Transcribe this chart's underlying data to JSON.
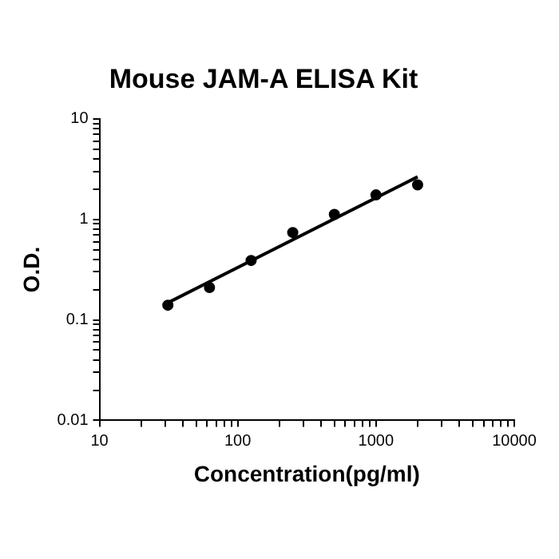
{
  "chart_data": {
    "type": "scatter",
    "title": "Mouse JAM-A ELISA Kit",
    "xlabel": "Concentration(pg/ml)",
    "ylabel": "O.D.",
    "log": "xy",
    "grid": false,
    "legend": false,
    "marker": "circle",
    "xlim": [
      10,
      10000
    ],
    "ylim": [
      0.01,
      10
    ],
    "xticks": [
      10,
      {
        "value": 20,
        "label": null
      },
      {
        "value": 30,
        "label": null
      },
      {
        "value": 40,
        "label": null
      },
      {
        "value": 50,
        "label": null
      },
      {
        "value": 60,
        "label": null
      },
      {
        "value": 70,
        "label": null
      },
      {
        "value": 80,
        "label": null
      },
      {
        "value": 90,
        "label": null
      },
      100,
      {
        "value": 200,
        "label": null
      },
      {
        "value": 300,
        "label": null
      },
      {
        "value": 400,
        "label": null
      },
      {
        "value": 500,
        "label": null
      },
      {
        "value": 600,
        "label": null
      },
      {
        "value": 700,
        "label": null
      },
      {
        "value": 800,
        "label": null
      },
      {
        "value": 900,
        "label": null
      },
      1000,
      {
        "value": 2000,
        "label": null
      },
      {
        "value": 3000,
        "label": null
      },
      {
        "value": 4000,
        "label": null
      },
      {
        "value": 5000,
        "label": null
      },
      {
        "value": 6000,
        "label": null
      },
      {
        "value": 7000,
        "label": null
      },
      {
        "value": 8000,
        "label": null
      },
      {
        "value": 9000,
        "label": null
      },
      10000
    ],
    "yticks": [
      0.01,
      {
        "value": 0.02,
        "label": null
      },
      {
        "value": 0.03,
        "label": null
      },
      {
        "value": 0.04,
        "label": null
      },
      {
        "value": 0.05,
        "label": null
      },
      {
        "value": 0.06,
        "label": null
      },
      {
        "value": 0.07,
        "label": null
      },
      {
        "value": 0.08,
        "label": null
      },
      {
        "value": 0.09,
        "label": null
      },
      0.1,
      {
        "value": 0.2,
        "label": null
      },
      {
        "value": 0.3,
        "label": null
      },
      {
        "value": 0.4,
        "label": null
      },
      {
        "value": 0.5,
        "label": null
      },
      {
        "value": 0.6,
        "label": null
      },
      {
        "value": 0.7,
        "label": null
      },
      {
        "value": 0.8,
        "label": null
      },
      {
        "value": 0.9,
        "label": null
      },
      1,
      {
        "value": 2,
        "label": null
      },
      {
        "value": 3,
        "label": null
      },
      {
        "value": 4,
        "label": null
      },
      {
        "value": 5,
        "label": null
      },
      {
        "value": 6,
        "label": null
      },
      {
        "value": 7,
        "label": null
      },
      {
        "value": 8,
        "label": null
      },
      {
        "value": 9,
        "label": null
      },
      10
    ],
    "series": [
      {
        "type": "scatter",
        "color": "#000000",
        "x": [
          31.25,
          62.5,
          125,
          250,
          500,
          1000,
          2000
        ],
        "values": [
          0.14,
          0.21,
          0.39,
          0.74,
          1.12,
          1.75,
          2.2
        ]
      },
      {
        "type": "line",
        "color": "#000000",
        "marker": "none",
        "line_style": "solid",
        "x": [
          31.25,
          2000
        ],
        "values": [
          0.148,
          2.65
        ]
      }
    ]
  }
}
